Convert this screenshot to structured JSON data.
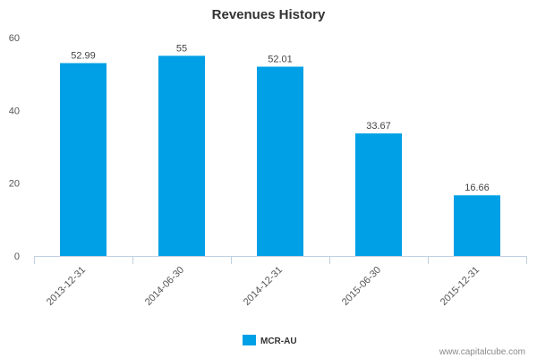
{
  "chart_data": {
    "type": "bar",
    "title": "Revenues History",
    "categories": [
      "2013-12-31",
      "2014-06-30",
      "2014-12-31",
      "2015-06-30",
      "2015-12-31"
    ],
    "series": [
      {
        "name": "MCR-AU",
        "values": [
          52.99,
          55,
          52.01,
          33.67,
          16.66
        ],
        "value_labels": [
          "52.99",
          "55",
          "52.01",
          "33.67",
          "16.66"
        ],
        "color": "#00a0e6"
      }
    ],
    "y_ticks": [
      0,
      20,
      40,
      60
    ],
    "ylim": [
      0,
      60
    ],
    "xlabel": "",
    "ylabel": "",
    "grid": false,
    "legend_position": "bottom-center",
    "axis_color": "#c0d0e0"
  },
  "watermark": "www.capitalcube.com"
}
